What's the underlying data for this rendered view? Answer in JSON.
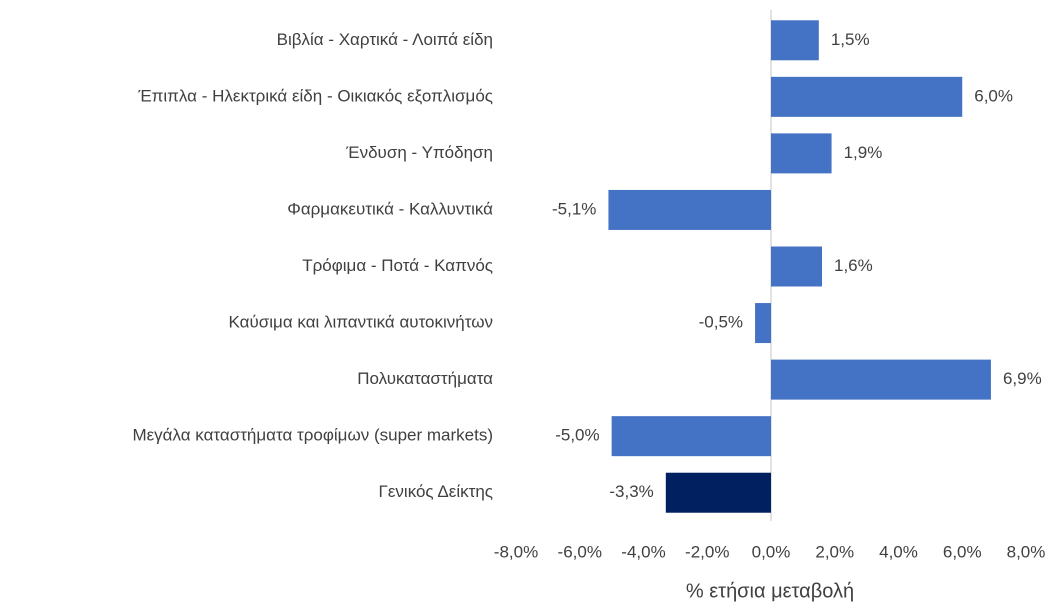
{
  "chart_data": {
    "type": "hbar",
    "categories": [
      "Βιβλία - Χαρτικά - Λοιπά είδη",
      "Έπιπλα - Ηλεκτρικά είδη - Οικιακός εξοπλισμός",
      "Ένδυση - Υπόδηση",
      "Φαρμακευτικά - Καλλυντικά",
      "Τρόφιμα - Ποτά - Καπνός",
      "Καύσιμα και λιπαντικά αυτοκινήτων",
      "Πολυκαταστήματα",
      "Μεγάλα καταστήματα τροφίμων (super markets)",
      "Γενικός Δείκτης"
    ],
    "values": [
      1.5,
      6.0,
      1.9,
      -5.1,
      1.6,
      -0.5,
      6.9,
      -5.0,
      -3.3
    ],
    "value_labels": [
      "1,5%",
      "6,0%",
      "1,9%",
      "-5,1%",
      "1,6%",
      "-0,5%",
      "6,9%",
      "-5,0%",
      "-3,3%"
    ],
    "colors": [
      "#4472c4",
      "#4472c4",
      "#4472c4",
      "#4472c4",
      "#4472c4",
      "#4472c4",
      "#4472c4",
      "#4472c4",
      "#002060"
    ],
    "xlabel": "% ετήσια μεταβολή",
    "xlim": [
      -8,
      8
    ],
    "xticks": [
      {
        "value": -8,
        "label": "-8,0%"
      },
      {
        "value": -6,
        "label": "-6,0%"
      },
      {
        "value": -4,
        "label": "-4,0%"
      },
      {
        "value": -2,
        "label": "-2,0%"
      },
      {
        "value": 0,
        "label": "0,0%"
      },
      {
        "value": 2,
        "label": "2,0%"
      },
      {
        "value": 4,
        "label": "4,0%"
      },
      {
        "value": 6,
        "label": "6,0%"
      },
      {
        "value": 8,
        "label": "8,0%"
      }
    ]
  }
}
